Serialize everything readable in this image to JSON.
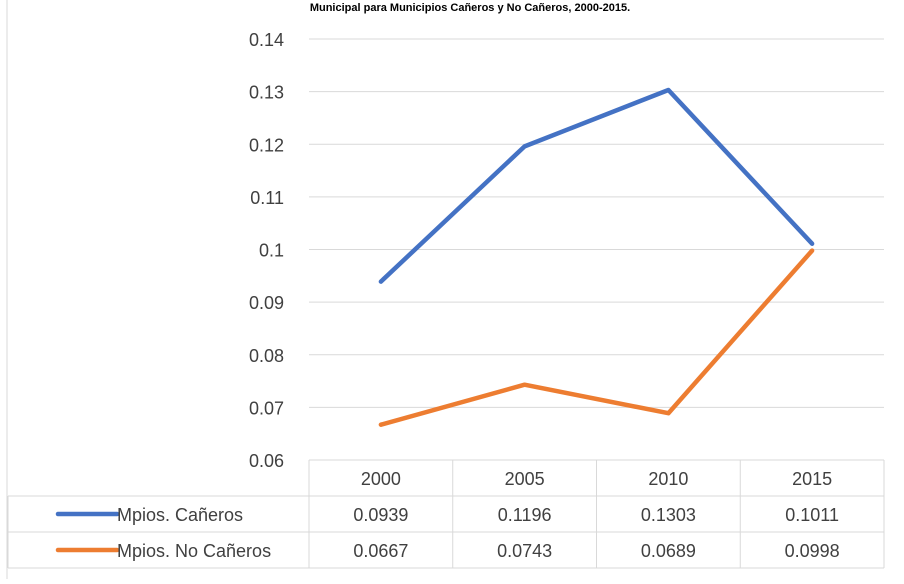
{
  "chart_data": {
    "type": "line",
    "title": "Municipal para Municipios Cañeros y No Cañeros, 2000-2015.",
    "categories": [
      "2000",
      "2005",
      "2010",
      "2015"
    ],
    "y_ticks": [
      "0.14",
      "0.13",
      "0.12",
      "0.11",
      "0.1",
      "0.09",
      "0.08",
      "0.07",
      "0.06"
    ],
    "ylim": [
      0.06,
      0.14
    ],
    "grid": true,
    "legend_placement": "data-table",
    "series": [
      {
        "name": "Mpios. Cañeros",
        "color": "#4472C4",
        "values": [
          0.0939,
          0.1196,
          0.1303,
          0.1011
        ],
        "labels": [
          "0.0939",
          "0.1196",
          "0.1303",
          "0.1011"
        ]
      },
      {
        "name": "Mpios. No Cañeros",
        "color": "#ED7D31",
        "values": [
          0.0667,
          0.0743,
          0.0689,
          0.0998
        ],
        "labels": [
          "0.0667",
          "0.0743",
          "0.0689",
          "0.0998"
        ]
      }
    ]
  }
}
